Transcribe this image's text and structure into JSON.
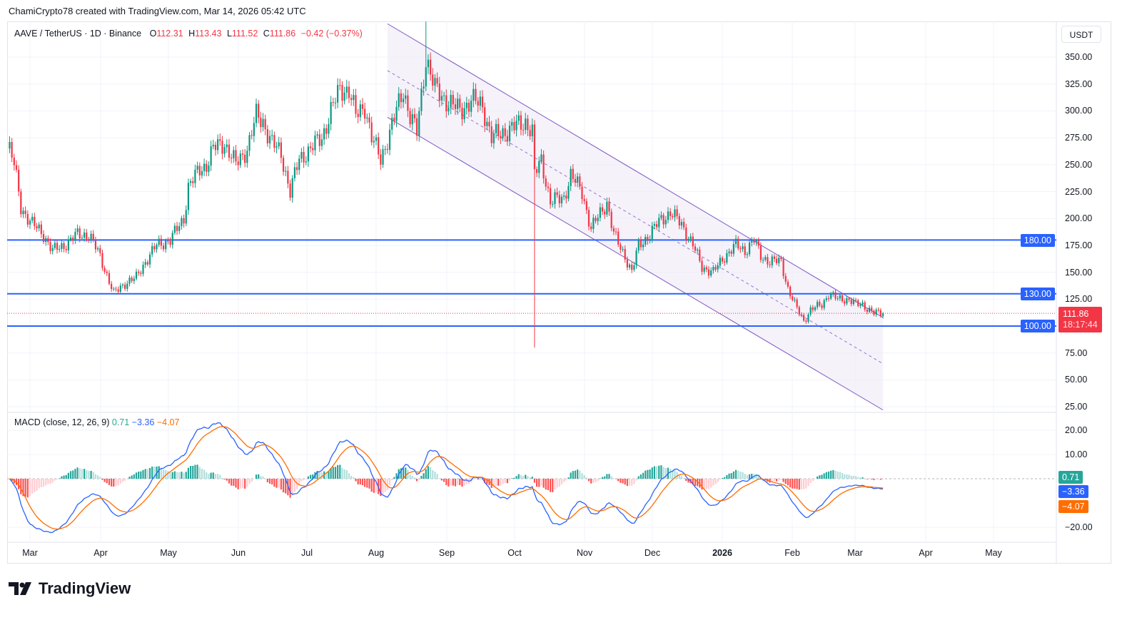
{
  "header": {
    "credit": "ChamiCrypto78 created with TradingView.com, Mar 14, 2026 05:42 UTC"
  },
  "legend": {
    "symbol": "AAVE / TetherUS · 1D · Binance",
    "o_label": "O",
    "o": "112.31",
    "h_label": "H",
    "h": "113.43",
    "l_label": "L",
    "l": "111.52",
    "c_label": "C",
    "c": "111.86",
    "change": "−0.42 (−0.37%)"
  },
  "macd_legend": {
    "title": "MACD (close, 12, 26, 9)",
    "hist": "0.71",
    "macd": "−3.36",
    "signal": "−4.07"
  },
  "axis": {
    "unit": "USDT",
    "price_ticks": [
      "350.00",
      "325.00",
      "300.00",
      "275.00",
      "250.00",
      "225.00",
      "200.00",
      "175.00",
      "150.00",
      "125.00",
      "75.00",
      "50.00",
      "25.00"
    ],
    "macd_ticks": [
      "20.00",
      "10.00",
      "−20.00"
    ]
  },
  "tags": {
    "level_180": "180.00",
    "level_130": "130.00",
    "level_100": "100.00",
    "price": "111.86",
    "countdown": "18:17:44",
    "macd_hist": "0.71",
    "macd": "−3.36",
    "signal": "−4.07"
  },
  "time_axis": [
    "Mar",
    "Apr",
    "May",
    "Jun",
    "Jul",
    "Aug",
    "Sep",
    "Oct",
    "Nov",
    "Dec",
    "2026",
    "Feb",
    "Mar",
    "Apr",
    "May"
  ],
  "footer": {
    "brand": "TradingView"
  },
  "colors": {
    "up": "#089981",
    "down": "#f23645",
    "level": "#2962ff",
    "macd": "#2962ff",
    "signal": "#ff6d00",
    "channel": "#7e57c2"
  },
  "chart_data": {
    "type": "candlestick",
    "title": "AAVE / TetherUS · 1D · Binance",
    "day_origin": "2025-03-01",
    "close_path": [
      [
        -9,
        265
      ],
      [
        -7,
        250
      ],
      [
        -4,
        210
      ],
      [
        1,
        195
      ],
      [
        6,
        185
      ],
      [
        10,
        170
      ],
      [
        15,
        175
      ],
      [
        21,
        185
      ],
      [
        26,
        185
      ],
      [
        31,
        165
      ],
      [
        37,
        130
      ],
      [
        42,
        140
      ],
      [
        47,
        145
      ],
      [
        51,
        160
      ],
      [
        56,
        175
      ],
      [
        62,
        180
      ],
      [
        68,
        200
      ],
      [
        70,
        230
      ],
      [
        75,
        245
      ],
      [
        78,
        250
      ],
      [
        81,
        265
      ],
      [
        86,
        270
      ],
      [
        91,
        250
      ],
      [
        96,
        265
      ],
      [
        100,
        295
      ],
      [
        103,
        290
      ],
      [
        107,
        270
      ],
      [
        111,
        260
      ],
      [
        115,
        225
      ],
      [
        119,
        255
      ],
      [
        124,
        265
      ],
      [
        129,
        275
      ],
      [
        133,
        300
      ],
      [
        137,
        320
      ],
      [
        141,
        320
      ],
      [
        144,
        295
      ],
      [
        148,
        305
      ],
      [
        151,
        275
      ],
      [
        155,
        255
      ],
      [
        159,
        280
      ],
      [
        162,
        300
      ],
      [
        165,
        320
      ],
      [
        168,
        295
      ],
      [
        171,
        280
      ],
      [
        175,
        350
      ],
      [
        179,
        320
      ],
      [
        184,
        310
      ],
      [
        190,
        300
      ],
      [
        195,
        310
      ],
      [
        200,
        305
      ],
      [
        204,
        275
      ],
      [
        209,
        280
      ],
      [
        214,
        285
      ],
      [
        219,
        290
      ],
      [
        222,
        280
      ],
      [
        223,
        240
      ],
      [
        226,
        255
      ],
      [
        230,
        215
      ],
      [
        236,
        220
      ],
      [
        239,
        240
      ],
      [
        244,
        225
      ],
      [
        248,
        190
      ],
      [
        252,
        205
      ],
      [
        255,
        215
      ],
      [
        258,
        185
      ],
      [
        263,
        165
      ],
      [
        266,
        150
      ],
      [
        269,
        175
      ],
      [
        274,
        185
      ],
      [
        279,
        200
      ],
      [
        283,
        205
      ],
      [
        288,
        195
      ],
      [
        293,
        175
      ],
      [
        297,
        155
      ],
      [
        302,
        150
      ],
      [
        307,
        165
      ],
      [
        312,
        175
      ],
      [
        316,
        170
      ],
      [
        320,
        180
      ],
      [
        323,
        165
      ],
      [
        327,
        160
      ],
      [
        332,
        160
      ],
      [
        335,
        135
      ],
      [
        338,
        120
      ],
      [
        342,
        105
      ],
      [
        345,
        115
      ],
      [
        350,
        120
      ],
      [
        353,
        130
      ],
      [
        357,
        125
      ],
      [
        362,
        125
      ],
      [
        365,
        120
      ],
      [
        368,
        120
      ],
      [
        373,
        112
      ],
      [
        377,
        111.86
      ]
    ],
    "special_wicks": [
      {
        "day": 175,
        "high": 383
      },
      {
        "day": 223,
        "low": 80
      }
    ],
    "horizontal_levels": [
      180,
      130,
      100
    ],
    "last_price": 111.86,
    "channel": {
      "upper": [
        [
          158,
          381
        ],
        [
          377,
          108
        ]
      ],
      "lower": [
        [
          158,
          294
        ],
        [
          377,
          22
        ]
      ]
    },
    "ylim": [
      25,
      350
    ],
    "macd": {
      "fast": 12,
      "slow": 26,
      "signal": 9,
      "last_hist": 0.71,
      "last_macd": -3.36,
      "last_signal": -4.07,
      "ylim": [
        -20,
        20
      ]
    }
  }
}
